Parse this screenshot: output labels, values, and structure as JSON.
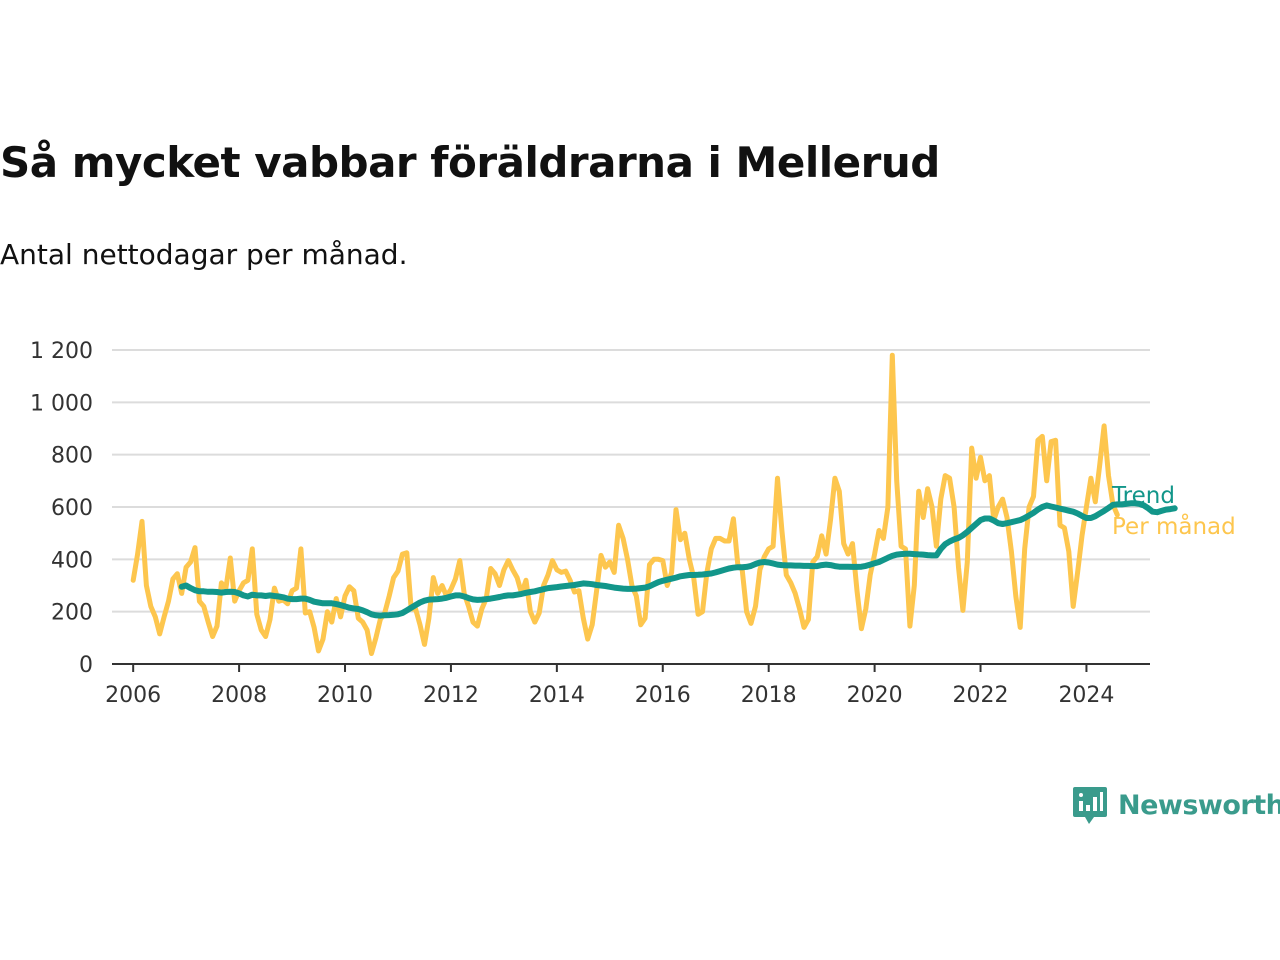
{
  "title": "Så mycket vabbar föräldrarna i Mellerud",
  "subtitle": "Antal nettodagar per månad.",
  "brand": {
    "name": "Newsworthy",
    "icon": "newsworthy-logo-icon",
    "color": "#3a9b8c"
  },
  "colors": {
    "trend": "#12968a",
    "monthly": "#fdc64e",
    "grid": "#dcdcdc",
    "axis": "#333333"
  },
  "chart_data": {
    "type": "line",
    "title": "Så mycket vabbar föräldrarna i Mellerud",
    "subtitle": "Antal nettodagar per månad.",
    "xlabel": "",
    "ylabel": "",
    "xlim": [
      2005.6,
      2025.2
    ],
    "ylim": [
      0,
      1200
    ],
    "x_ticks": [
      2006,
      2008,
      2010,
      2012,
      2014,
      2016,
      2018,
      2020,
      2022,
      2024
    ],
    "x_tick_labels": [
      "2006",
      "2008",
      "2010",
      "2012",
      "2014",
      "2016",
      "2018",
      "2020",
      "2022",
      "2024"
    ],
    "y_ticks": [
      0,
      200,
      400,
      600,
      800,
      1000,
      1200
    ],
    "y_tick_labels": [
      "0",
      "200",
      "400",
      "600",
      "800",
      "1 000",
      "1 200"
    ],
    "grid": true,
    "legend": "direct labels at right end of lines",
    "series": [
      {
        "name": "Per månad",
        "color": "#fdc64e",
        "start": "2006-01",
        "frequency": "monthly",
        "values": [
          320,
          420,
          545,
          300,
          220,
          180,
          115,
          180,
          240,
          325,
          345,
          270,
          370,
          390,
          445,
          240,
          220,
          160,
          105,
          145,
          310,
          290,
          405,
          240,
          280,
          310,
          320,
          440,
          190,
          130,
          105,
          170,
          290,
          240,
          245,
          230,
          280,
          290,
          440,
          195,
          200,
          140,
          50,
          95,
          200,
          160,
          250,
          180,
          260,
          295,
          280,
          175,
          160,
          130,
          40,
          100,
          170,
          195,
          260,
          330,
          355,
          420,
          425,
          210,
          210,
          150,
          75,
          175,
          330,
          270,
          300,
          260,
          285,
          325,
          395,
          270,
          220,
          160,
          145,
          210,
          250,
          365,
          345,
          300,
          360,
          395,
          360,
          330,
          270,
          320,
          200,
          160,
          195,
          300,
          340,
          395,
          360,
          350,
          355,
          320,
          275,
          280,
          175,
          95,
          150,
          280,
          415,
          370,
          390,
          350,
          530,
          480,
          400,
          300,
          260,
          150,
          175,
          380,
          400,
          400,
          395,
          300,
          350,
          590,
          475,
          500,
          400,
          330,
          190,
          200,
          350,
          440,
          480,
          480,
          470,
          470,
          555,
          380,
          360,
          200,
          155,
          220,
          360,
          410,
          440,
          450,
          710,
          510,
          340,
          310,
          270,
          210,
          140,
          170,
          390,
          410,
          490,
          420,
          550,
          710,
          660,
          460,
          420,
          460,
          280,
          135,
          210,
          340,
          420,
          510,
          480,
          600,
          1180,
          700,
          450,
          440,
          145,
          300,
          660,
          560,
          670,
          600,
          450,
          630,
          720,
          710,
          600,
          370,
          205,
          390,
          825,
          710,
          790,
          700,
          720,
          550,
          600,
          630,
          560,
          430,
          260,
          140,
          440,
          600,
          640,
          855,
          870,
          700,
          850,
          855,
          530,
          520,
          430,
          220,
          350,
          490,
          600,
          710,
          620,
          760,
          910,
          720,
          610,
          570
        ]
      },
      {
        "name": "Trend",
        "color": "#12968a",
        "start": "2006-12",
        "frequency": "monthly",
        "values": [
          295,
          300,
          290,
          282,
          278,
          278,
          276,
          276,
          275,
          273,
          275,
          276,
          275,
          270,
          262,
          258,
          265,
          262,
          262,
          260,
          262,
          260,
          258,
          255,
          250,
          248,
          248,
          250,
          250,
          245,
          238,
          235,
          232,
          232,
          232,
          229,
          225,
          220,
          215,
          212,
          210,
          205,
          198,
          190,
          186,
          185,
          186,
          187,
          188,
          190,
          195,
          205,
          215,
          225,
          235,
          242,
          246,
          247,
          248,
          250,
          253,
          258,
          262,
          262,
          258,
          252,
          247,
          245,
          246,
          248,
          250,
          253,
          256,
          260,
          262,
          262,
          265,
          268,
          272,
          275,
          278,
          282,
          286,
          290,
          292,
          294,
          296,
          298,
          300,
          302,
          305,
          308,
          307,
          305,
          302,
          300,
          298,
          295,
          292,
          290,
          288,
          287,
          287,
          288,
          290,
          292,
          297,
          305,
          313,
          318,
          322,
          326,
          330,
          335,
          338,
          340,
          340,
          341,
          342,
          344,
          346,
          350,
          355,
          360,
          365,
          368,
          370,
          370,
          371,
          375,
          382,
          388,
          390,
          388,
          384,
          380,
          378,
          377,
          377,
          376,
          376,
          375,
          375,
          374,
          374,
          378,
          380,
          378,
          374,
          372,
          372,
          372,
          371,
          371,
          372,
          375,
          380,
          385,
          390,
          398,
          406,
          413,
          418,
          420,
          421,
          421,
          420,
          419,
          418,
          416,
          415,
          415,
          440,
          458,
          468,
          476,
          482,
          492,
          505,
          520,
          535,
          550,
          556,
          556,
          548,
          538,
          535,
          538,
          542,
          546,
          550,
          558,
          568,
          578,
          590,
          600,
          606,
          602,
          598,
          594,
          590,
          586,
          582,
          575,
          566,
          558,
          558,
          565,
          575,
          585,
          596,
          608,
          610,
          610,
          612,
          614,
          614,
          612,
          606,
          595,
          582,
          580,
          585,
          590,
          592,
          595
        ]
      }
    ]
  }
}
